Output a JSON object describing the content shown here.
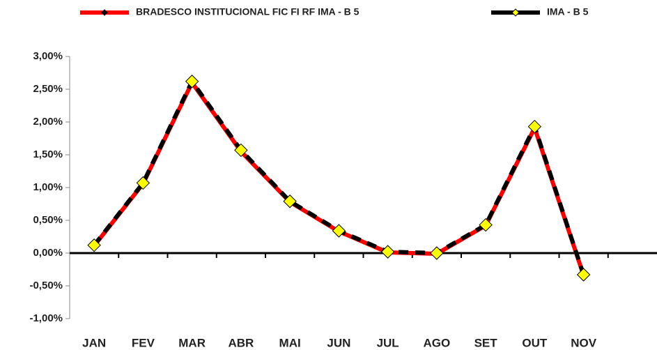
{
  "chart_data": {
    "type": "line",
    "categories": [
      "JAN",
      "FEV",
      "MAR",
      "ABR",
      "MAI",
      "JUN",
      "JUL",
      "AGO",
      "SET",
      "OUT",
      "NOV",
      null
    ],
    "series": [
      {
        "name": "BRADESCO INSTITUCIONAL FIC FI RF IMA - B 5",
        "color": "#ff0000",
        "marker_color": "#000000",
        "values": [
          0.11,
          1.06,
          2.6,
          1.55,
          0.78,
          0.33,
          0.01,
          -0.01,
          0.42,
          1.91,
          -0.34,
          null
        ]
      },
      {
        "name": "IMA - B 5",
        "color": "#000000",
        "marker_color": "#ffff00",
        "values": [
          0.12,
          1.07,
          2.62,
          1.57,
          0.79,
          0.34,
          0.02,
          0.0,
          0.43,
          1.93,
          -0.33,
          null
        ]
      }
    ],
    "ylim": [
      -1,
      3
    ],
    "yticks": [
      {
        "value": -1,
        "label": "-1,00%"
      },
      {
        "value": -0.5,
        "label": "-0,50%"
      },
      {
        "value": 0,
        "label": "0,00%"
      },
      {
        "value": 0.5,
        "label": "0,50%"
      },
      {
        "value": 1,
        "label": "1,00%"
      },
      {
        "value": 1.5,
        "label": "1,50%"
      },
      {
        "value": 2,
        "label": "2,00%"
      },
      {
        "value": 2.5,
        "label": "2,50%"
      },
      {
        "value": 3,
        "label": "3,00%"
      }
    ],
    "grid": false,
    "legend": "top"
  }
}
